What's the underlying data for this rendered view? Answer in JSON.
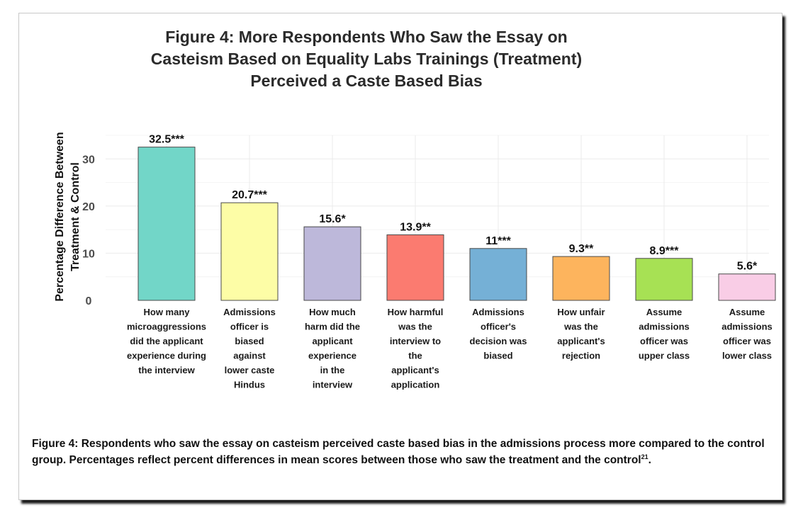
{
  "chart_data": {
    "type": "bar",
    "title": "Figure 4: More Respondents Who Saw the Essay on Casteism Based on Equality Labs Trainings (Treatment) Perceived a Caste Based Bias",
    "ylabel_lines": [
      "Percentage Difference Between",
      "Treatment & Control"
    ],
    "xlabel": "",
    "ylim": [
      0,
      35
    ],
    "yticks": [
      0,
      10,
      20,
      30
    ],
    "grid": true,
    "categories": [
      [
        "How many",
        "microaggressions",
        "did the applicant",
        "experience during",
        "the interview"
      ],
      [
        "Admissions",
        "officer is",
        "biased",
        "against",
        "lower caste",
        "Hindus"
      ],
      [
        "How much",
        "harm did the",
        "applicant",
        "experience",
        "in the",
        "interview"
      ],
      [
        "How harmful",
        "was the",
        "interview to",
        "the",
        "applicant's",
        "application"
      ],
      [
        "Admissions",
        "officer's",
        "decision was",
        "biased"
      ],
      [
        "How unfair",
        "was the",
        "applicant's",
        "rejection"
      ],
      [
        "Assume",
        "admissions",
        "officer was",
        "upper class"
      ],
      [
        "Assume",
        "admissions",
        "officer was",
        "lower class"
      ]
    ],
    "values": [
      32.5,
      20.7,
      15.6,
      13.9,
      11,
      9.3,
      8.9,
      5.6
    ],
    "data_labels": [
      "32.5***",
      "20.7***",
      "15.6*",
      "13.9**",
      "11***",
      "9.3**",
      "8.9***",
      "5.6*"
    ],
    "colors": [
      "#72d6c8",
      "#fdfda6",
      "#bdb8da",
      "#fb7b70",
      "#75b0d6",
      "#fdb45d",
      "#a7e154",
      "#f9cde6"
    ]
  },
  "caption": {
    "text": "Figure 4: Respondents who saw the essay on casteism perceived caste based bias in the admissions process more compared to the control group. Percentages reflect percent differences in mean scores between those who saw the treatment and the control",
    "footnote": "21",
    "end": "."
  }
}
